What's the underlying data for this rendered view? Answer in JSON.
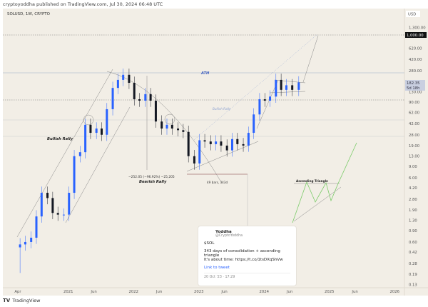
{
  "header": {
    "published": "cryptoyoddha published on TradingView.com, Jul 30, 2024 06:48 UTC"
  },
  "chart": {
    "symbol": "SOLUSD, 1W, CRYPTO",
    "currency": "USD",
    "current_price": "182.35",
    "countdown": "5d 18h",
    "highlight_level": "1,000.00"
  },
  "chart_data": {
    "type": "candlestick",
    "scale": "log",
    "price_ticks": [
      "1,300.00",
      "620.00",
      "420.00",
      "280.00",
      "130.00",
      "90.00",
      "62.00",
      "42.00",
      "28.00",
      "19.00",
      "13.00",
      "9.00",
      "6.00",
      "4.20",
      "2.80",
      "1.90",
      "1.30",
      "0.90",
      "0.60",
      "0.42",
      "0.28",
      "0.19",
      "0.13"
    ],
    "price_tick_values": [
      1300,
      620,
      420,
      280,
      130,
      90,
      62,
      42,
      28,
      19,
      13,
      9,
      6,
      4.2,
      2.8,
      1.9,
      1.3,
      0.9,
      0.6,
      0.42,
      0.28,
      0.19,
      0.13
    ],
    "time_ticks": [
      "Apr",
      "2021",
      "Jun",
      "2022",
      "Jun",
      "2023",
      "Jun",
      "2024",
      "Jun",
      "2025",
      "Jun",
      "2026"
    ],
    "time_tick_values": [
      2020.25,
      2021,
      2021.42,
      2022,
      2022.42,
      2023,
      2023.42,
      2024,
      2024.42,
      2025,
      2025.42,
      2026
    ],
    "series": [
      [
        2020.28,
        0.55
      ],
      [
        2020.36,
        0.6
      ],
      [
        2020.45,
        0.7
      ],
      [
        2020.53,
        1.5
      ],
      [
        2020.61,
        3.5
      ],
      [
        2020.7,
        2.9
      ],
      [
        2020.78,
        1.7
      ],
      [
        2020.86,
        1.6
      ],
      [
        2020.95,
        1.6
      ],
      [
        2021.03,
        3.5
      ],
      [
        2021.11,
        13
      ],
      [
        2021.2,
        15
      ],
      [
        2021.28,
        40
      ],
      [
        2021.36,
        30
      ],
      [
        2021.45,
        35
      ],
      [
        2021.53,
        28
      ],
      [
        2021.61,
        70
      ],
      [
        2021.7,
        150
      ],
      [
        2021.78,
        200
      ],
      [
        2021.86,
        240
      ],
      [
        2021.95,
        180
      ],
      [
        2022.03,
        100
      ],
      [
        2022.11,
        95
      ],
      [
        2022.2,
        120
      ],
      [
        2022.28,
        95
      ],
      [
        2022.36,
        45
      ],
      [
        2022.45,
        35
      ],
      [
        2022.53,
        40
      ],
      [
        2022.61,
        35
      ],
      [
        2022.7,
        33
      ],
      [
        2022.78,
        31
      ],
      [
        2022.86,
        13
      ],
      [
        2022.95,
        10
      ],
      [
        2023.03,
        23
      ],
      [
        2023.11,
        22
      ],
      [
        2023.2,
        20
      ],
      [
        2023.28,
        22
      ],
      [
        2023.36,
        19
      ],
      [
        2023.45,
        16
      ],
      [
        2023.53,
        24
      ],
      [
        2023.61,
        20
      ],
      [
        2023.7,
        19
      ],
      [
        2023.78,
        30
      ],
      [
        2023.86,
        58
      ],
      [
        2023.95,
        100
      ],
      [
        2024.03,
        95
      ],
      [
        2024.11,
        110
      ],
      [
        2024.2,
        200
      ],
      [
        2024.28,
        140
      ],
      [
        2024.36,
        165
      ],
      [
        2024.45,
        140
      ],
      [
        2024.55,
        182.35
      ]
    ]
  },
  "annotations": {
    "ath": "ATH",
    "bullish_rally": "Bullish Rally",
    "bullish_rally_2": "Bullish Rally",
    "bearish_rally": "Bearish Rally",
    "measure": "−252.05 (−96.92%) −25,205",
    "range": "49 bars, 343d",
    "triangle": "Ascending Triangle"
  },
  "tweet": {
    "name": "Yoddha",
    "handle": "@CryptoYoddha",
    "line1": "$SOL",
    "line2": "343 days of consolidation + ascending triangle",
    "line3": "It's about time: https://t.co/1tsDXqShVw",
    "link": "Link to tweet",
    "date": "20 Oct '23 · 17:29"
  },
  "footer": {
    "brand": "TradingView"
  },
  "colors": {
    "up": "#2962ff",
    "down": "#131722",
    "projection": "#7ccc6a",
    "bg": "#f2eee6"
  }
}
